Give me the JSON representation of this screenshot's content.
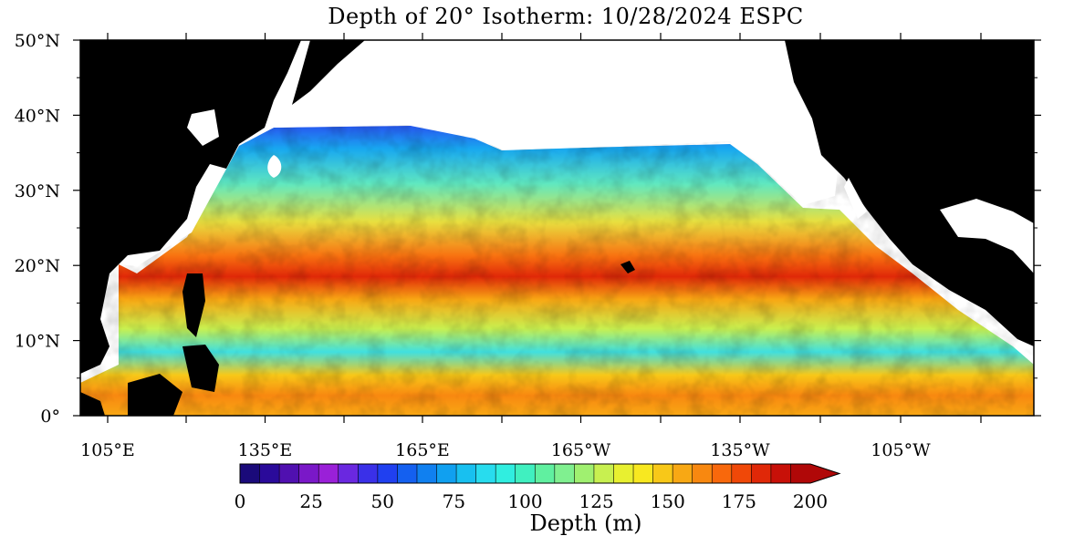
{
  "title": "Depth of 20° Isotherm: 10/28/2024 ESPC",
  "map": {
    "lat_labels": [
      "50°N",
      "40°N",
      "30°N",
      "20°N",
      "10°N",
      "0°"
    ],
    "lon_labels": [
      "105°E",
      "135°E",
      "165°E",
      "165°W",
      "135°W",
      "105°W"
    ],
    "land_color": "#000000",
    "missing_color": "#ffffff"
  },
  "colorbar": {
    "labels": [
      "0",
      "25",
      "50",
      "75",
      "100",
      "125",
      "150",
      "175",
      "200"
    ],
    "title": "Depth (m)",
    "colors": [
      "#1a0a7a",
      "#2a0a9a",
      "#5010b0",
      "#7a18c8",
      "#9a20d8",
      "#6a28e0",
      "#3a30e8",
      "#2040f0",
      "#1460f0",
      "#1080f0",
      "#10a0f0",
      "#18c0f0",
      "#28dcee",
      "#30eee0",
      "#40f0c0",
      "#60f0a0",
      "#80f090",
      "#a0f070",
      "#c8f050",
      "#e8f030",
      "#f8e820",
      "#f8c818",
      "#f8a814",
      "#f88810",
      "#f8680c",
      "#f04808",
      "#e02808",
      "#c81008",
      "#b00808"
    ]
  }
}
